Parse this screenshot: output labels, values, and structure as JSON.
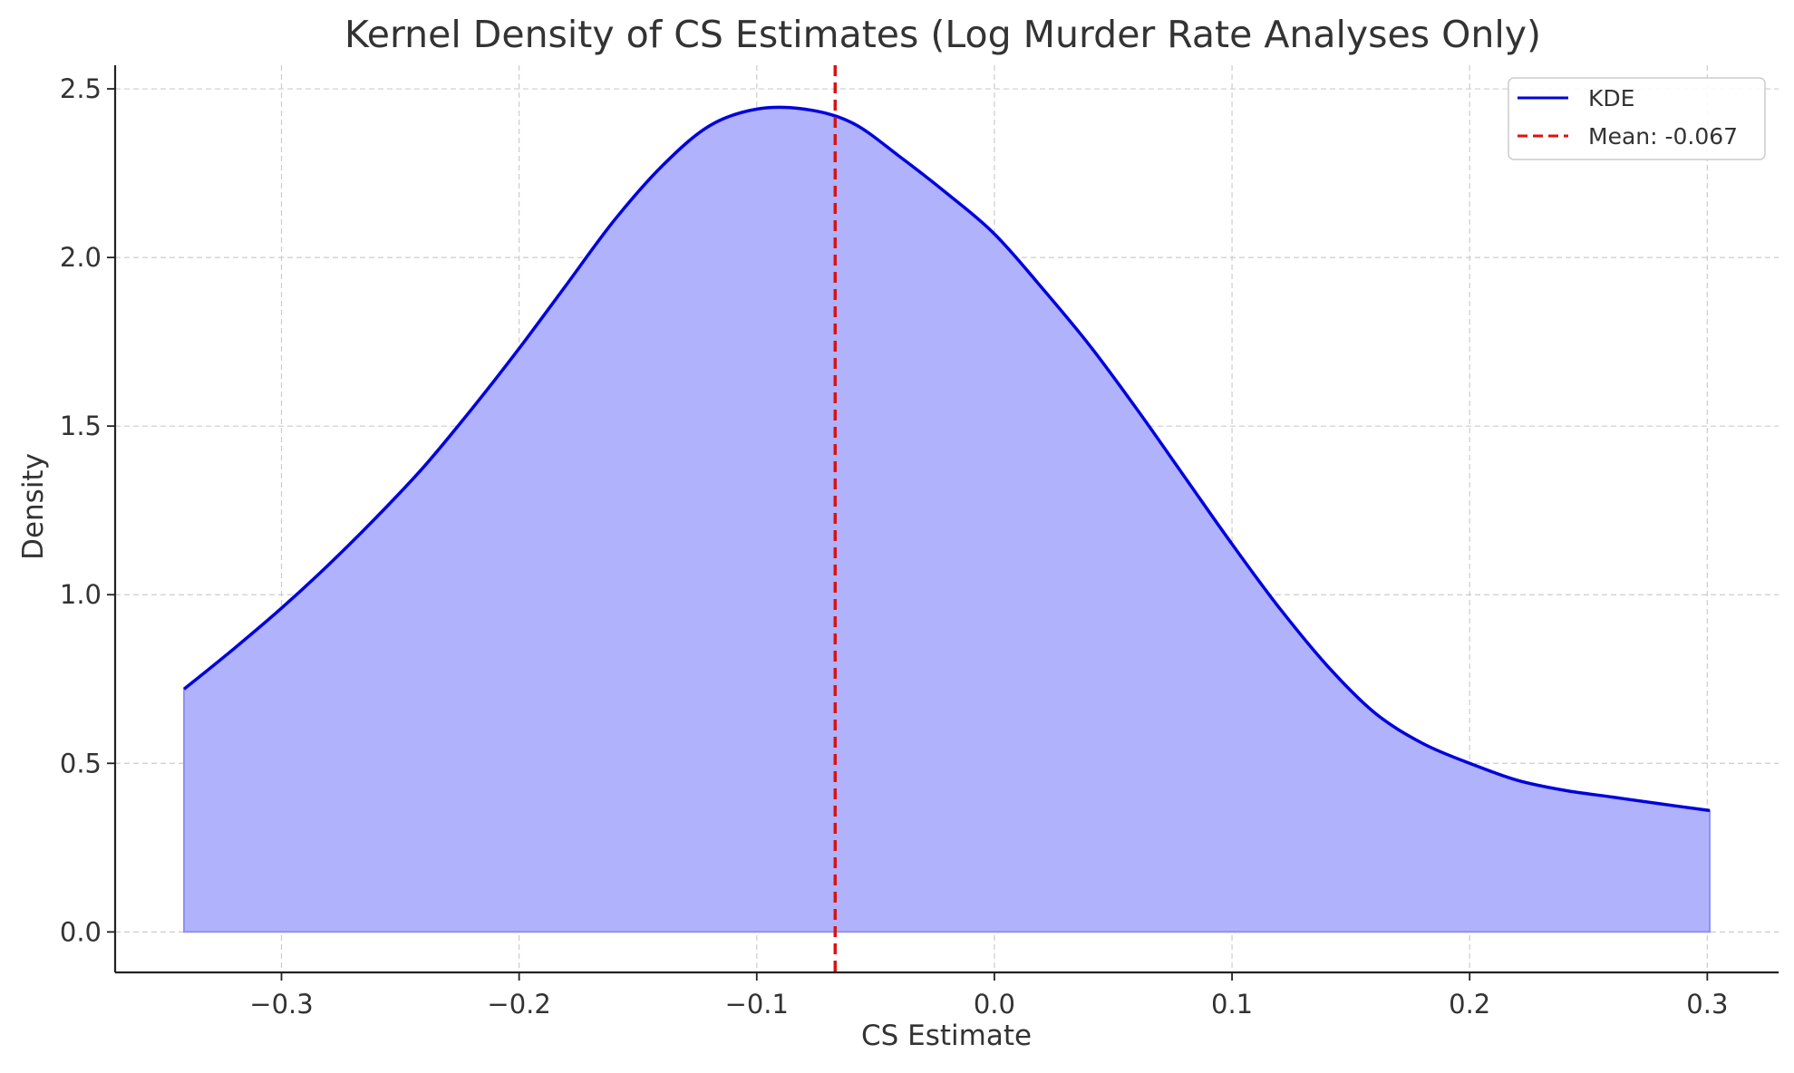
{
  "chart_data": {
    "type": "area",
    "title": "Kernel Density of CS Estimates (Log Murder Rate Analyses Only)",
    "xlabel": "CS Estimate",
    "ylabel": "Density",
    "xlim": [
      -0.37,
      0.33
    ],
    "ylim": [
      -0.12,
      2.57
    ],
    "xticks": [
      -0.3,
      -0.2,
      -0.1,
      0.0,
      0.1,
      0.2,
      0.3
    ],
    "xtick_labels": [
      "−0.3",
      "−0.2",
      "−0.1",
      "0.0",
      "0.1",
      "0.2",
      "0.3"
    ],
    "yticks": [
      0.0,
      0.5,
      1.0,
      1.5,
      2.0,
      2.5
    ],
    "ytick_labels": [
      "0.0",
      "0.5",
      "1.0",
      "1.5",
      "2.0",
      "2.5"
    ],
    "grid": true,
    "legend_position": "top-right",
    "series": [
      {
        "name": "KDE",
        "color": "#0000dd",
        "fill_color": "#b0b2fc",
        "x": [
          -0.341,
          -0.32,
          -0.3,
          -0.28,
          -0.26,
          -0.24,
          -0.22,
          -0.2,
          -0.18,
          -0.16,
          -0.14,
          -0.12,
          -0.1,
          -0.08,
          -0.06,
          -0.04,
          -0.02,
          0.0,
          0.02,
          0.04,
          0.06,
          0.08,
          0.1,
          0.12,
          0.14,
          0.16,
          0.18,
          0.2,
          0.22,
          0.24,
          0.26,
          0.28,
          0.301
        ],
        "y": [
          0.72,
          0.84,
          0.96,
          1.09,
          1.23,
          1.38,
          1.55,
          1.73,
          1.92,
          2.11,
          2.27,
          2.39,
          2.44,
          2.44,
          2.4,
          2.3,
          2.19,
          2.07,
          1.91,
          1.74,
          1.55,
          1.35,
          1.15,
          0.96,
          0.79,
          0.65,
          0.56,
          0.5,
          0.45,
          0.42,
          0.4,
          0.38,
          0.36
        ]
      }
    ],
    "reference_lines": [
      {
        "name": "Mean: -0.067",
        "x": -0.067,
        "color": "#dd1111"
      }
    ]
  }
}
